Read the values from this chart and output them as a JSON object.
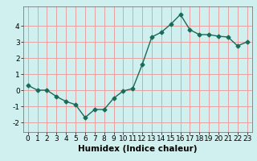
{
  "x": [
    0,
    1,
    2,
    3,
    4,
    5,
    6,
    7,
    8,
    9,
    10,
    11,
    12,
    13,
    14,
    15,
    16,
    17,
    18,
    19,
    20,
    21,
    22,
    23
  ],
  "y": [
    0.3,
    0.0,
    0.0,
    -0.4,
    -0.7,
    -0.9,
    -1.7,
    -1.2,
    -1.2,
    -0.5,
    -0.05,
    0.1,
    1.6,
    3.3,
    3.6,
    4.1,
    4.7,
    3.75,
    3.45,
    3.45,
    3.35,
    3.3,
    2.75,
    3.0
  ],
  "line_color": "#1a6b5a",
  "marker": "D",
  "markersize": 2.5,
  "linewidth": 1.0,
  "xlabel": "Humidex (Indice chaleur)",
  "xlim": [
    -0.5,
    23.5
  ],
  "ylim": [
    -2.6,
    5.2
  ],
  "yticks": [
    -2,
    -1,
    0,
    1,
    2,
    3,
    4
  ],
  "xticks": [
    0,
    1,
    2,
    3,
    4,
    5,
    6,
    7,
    8,
    9,
    10,
    11,
    12,
    13,
    14,
    15,
    16,
    17,
    18,
    19,
    20,
    21,
    22,
    23
  ],
  "bg_color": "#cff0ef",
  "grid_color": "#e8a0a0",
  "tick_fontsize": 6.5,
  "xlabel_fontsize": 7.5
}
